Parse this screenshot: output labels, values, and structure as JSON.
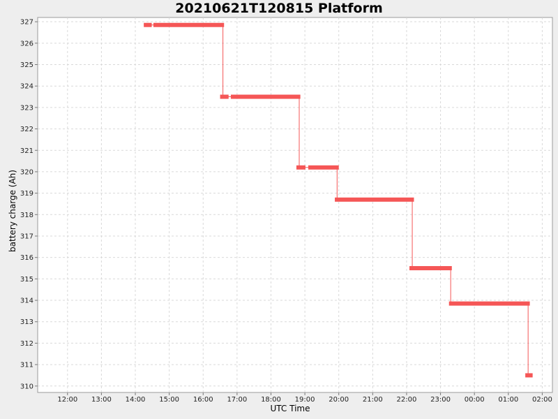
{
  "chart_data": {
    "type": "line",
    "title": "20210621T120815 Platform",
    "xlabel": "UTC Time",
    "ylabel": "battery charge (Ah)",
    "x_tick_labels": [
      "12:00",
      "13:00",
      "14:00",
      "15:00",
      "16:00",
      "17:00",
      "18:00",
      "19:00",
      "20:00",
      "21:00",
      "22:00",
      "23:00",
      "00:00",
      "01:00",
      "02:00"
    ],
    "x_tick_hours": [
      12,
      13,
      14,
      15,
      16,
      17,
      18,
      19,
      20,
      21,
      22,
      23,
      24,
      25,
      26
    ],
    "y_tick_labels": [
      "310",
      "311",
      "312",
      "313",
      "314",
      "315",
      "316",
      "317",
      "318",
      "319",
      "320",
      "321",
      "322",
      "323",
      "324",
      "325",
      "326",
      "327"
    ],
    "xlim_hours": [
      11.12,
      26.3
    ],
    "ylim": [
      309.7,
      327.2
    ],
    "grid": true,
    "color": "#f55656",
    "series": [
      {
        "points": [
          {
            "t": "14:15",
            "y": 326.85
          },
          {
            "t": "16:35",
            "y": 326.85
          },
          {
            "t": "16:35",
            "y": 323.5
          },
          {
            "t": "18:50",
            "y": 323.5
          },
          {
            "t": "18:50",
            "y": 320.2
          },
          {
            "t": "19:57",
            "y": 320.2
          },
          {
            "t": "19:57",
            "y": 318.7
          },
          {
            "t": "22:10",
            "y": 318.7
          },
          {
            "t": "22:10",
            "y": 315.5
          },
          {
            "t": "23:18",
            "y": 315.5
          },
          {
            "t": "23:18",
            "y": 313.85
          },
          {
            "t": "01:35",
            "y": 313.85
          },
          {
            "t": "01:35",
            "y": 310.5
          },
          {
            "t": "01:40",
            "y": 310.5
          }
        ]
      }
    ],
    "segments": [
      {
        "start": "14:15",
        "end": "14:29",
        "y": 326.85
      },
      {
        "start": "14:32",
        "end": "16:37",
        "y": 326.85
      },
      {
        "start": "16:30",
        "end": "16:45",
        "y": 323.5
      },
      {
        "start": "16:49",
        "end": "18:52",
        "y": 323.5
      },
      {
        "start": "18:45",
        "end": "19:01",
        "y": 320.2
      },
      {
        "start": "19:06",
        "end": "20:00",
        "y": 320.2
      },
      {
        "start": "19:53",
        "end": "22:13",
        "y": 318.7
      },
      {
        "start": "22:05",
        "end": "23:20",
        "y": 315.5
      },
      {
        "start": "23:15",
        "end": "01:38",
        "y": 313.85
      },
      {
        "start": "01:30",
        "end": "01:43",
        "y": 310.5
      }
    ]
  }
}
